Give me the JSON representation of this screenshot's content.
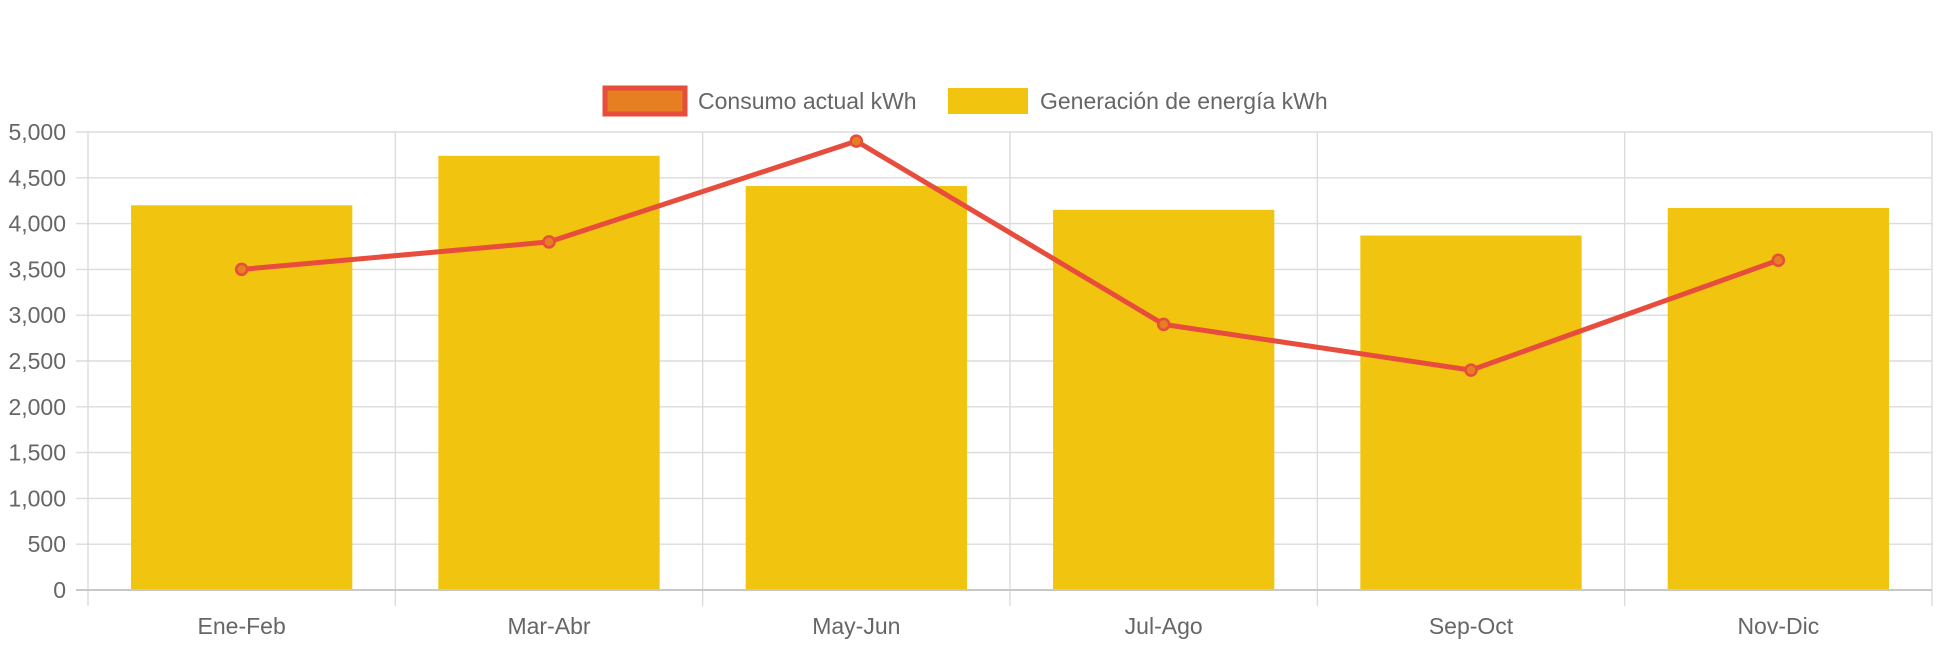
{
  "chart_data": {
    "type": "bar",
    "categories": [
      "Ene-Feb",
      "Mar-Abr",
      "May-Jun",
      "Jul-Ago",
      "Sep-Oct",
      "Nov-Dic"
    ],
    "series": [
      {
        "name": "Consumo actual kWh",
        "type": "line",
        "values": [
          3500,
          3800,
          4900,
          2900,
          2400,
          3600
        ],
        "color": "#e74c3c",
        "point_color": "#e67e22"
      },
      {
        "name": "Generación de energía kWh",
        "type": "bar",
        "values": [
          4200,
          4740,
          4410,
          4150,
          3870,
          4170
        ],
        "color": "#f1c40f"
      }
    ],
    "ylim": [
      0,
      5000
    ],
    "yticks": [
      0,
      500,
      1000,
      1500,
      2000,
      2500,
      3000,
      3500,
      4000,
      4500,
      5000
    ],
    "ytick_labels": [
      "0",
      "500",
      "1,000",
      "1,500",
      "2,000",
      "2,500",
      "3,000",
      "3,500",
      "4,000",
      "4,500",
      "5,000"
    ],
    "grid": true,
    "legend_position": "top-center",
    "title": "",
    "xlabel": "",
    "ylabel": ""
  }
}
